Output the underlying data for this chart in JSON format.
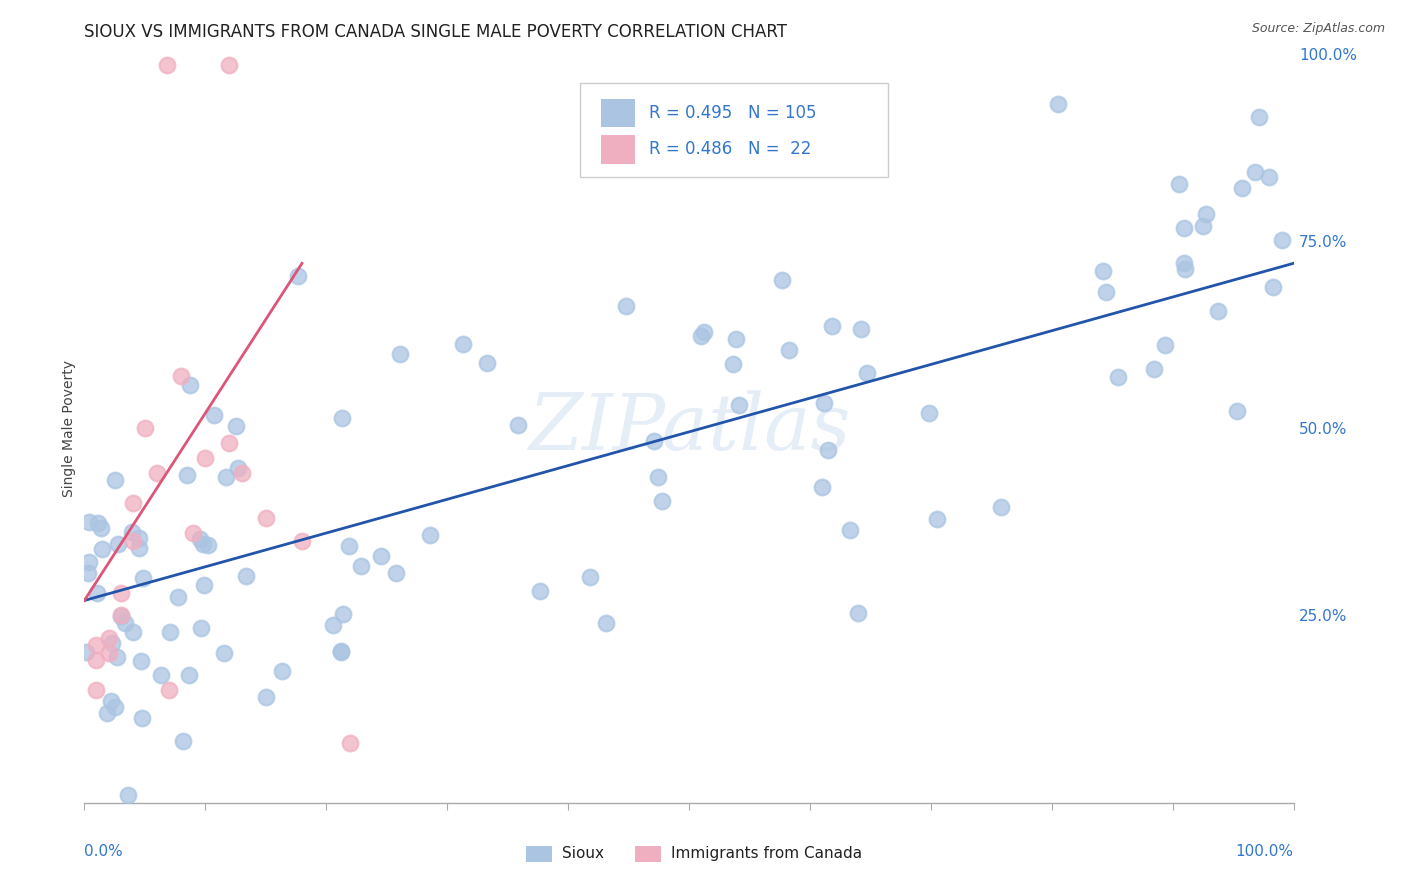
{
  "title": "SIOUX VS IMMIGRANTS FROM CANADA SINGLE MALE POVERTY CORRELATION CHART",
  "source": "Source: ZipAtlas.com",
  "ylabel": "Single Male Poverty",
  "watermark": "ZIPatlas",
  "sioux_scatter_color": "#aac4e2",
  "canada_scatter_color": "#f0afc0",
  "sioux_line_color": "#2255aa",
  "canada_line_color": "#dd5577",
  "background_color": "#ffffff",
  "grid_color": "#cccccc",
  "title_color": "#222222",
  "axis_label_color": "#3377cc",
  "legend_text_color": "#3377cc",
  "sioux_R": 0.495,
  "sioux_N": 105,
  "canada_R": 0.486,
  "canada_N": 22,
  "sioux_line_x0": 0.0,
  "sioux_line_y0": 0.27,
  "sioux_line_x1": 1.0,
  "sioux_line_y1": 0.72,
  "canada_line_x0": 0.0,
  "canada_line_y0": 0.27,
  "canada_line_x1": 0.18,
  "canada_line_y1": 0.72,
  "xlim": [
    0.0,
    1.0
  ],
  "ylim": [
    0.0,
    1.0
  ],
  "yticks": [
    0.0,
    0.25,
    0.5,
    0.75,
    1.0
  ],
  "ytick_labels": [
    "",
    "25.0%",
    "50.0%",
    "75.0%",
    "100.0%"
  ],
  "title_fontsize": 12,
  "axis_fontsize": 10,
  "tick_fontsize": 11,
  "marker_size": 130,
  "marker_lw": 1.5
}
